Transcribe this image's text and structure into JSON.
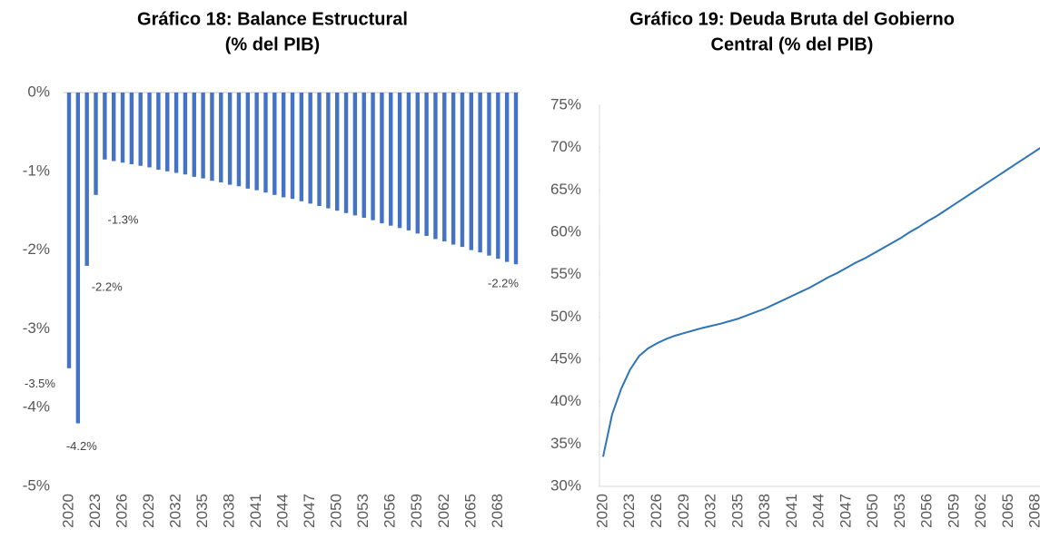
{
  "chart_data": [
    {
      "type": "bar",
      "title": [
        "Gráfico 18: Balance Estructural",
        "(% del PIB)"
      ],
      "categories": [
        "2020",
        null,
        null,
        "2023",
        null,
        null,
        "2026",
        null,
        null,
        "2029",
        null,
        null,
        "2032",
        null,
        null,
        "2035",
        null,
        null,
        "2038",
        null,
        null,
        "2041",
        null,
        null,
        "2044",
        null,
        null,
        "2047",
        null,
        null,
        "2050",
        null,
        null,
        "2053",
        null,
        null,
        "2056",
        null,
        null,
        "2059",
        null,
        null,
        "2062",
        null,
        null,
        "2065",
        null,
        null,
        "2068",
        null,
        null
      ],
      "values": [
        -3.5,
        -4.2,
        -2.2,
        -1.3,
        -0.85,
        -0.87,
        -0.89,
        -0.91,
        -0.93,
        -0.95,
        -0.98,
        -1.0,
        -1.02,
        -1.04,
        -1.07,
        -1.09,
        -1.12,
        -1.14,
        -1.17,
        -1.19,
        -1.22,
        -1.24,
        -1.27,
        -1.3,
        -1.33,
        -1.35,
        -1.38,
        -1.41,
        -1.44,
        -1.47,
        -1.5,
        -1.53,
        -1.56,
        -1.59,
        -1.62,
        -1.66,
        -1.69,
        -1.72,
        -1.75,
        -1.79,
        -1.82,
        -1.86,
        -1.89,
        -1.93,
        -1.96,
        -2.0,
        -2.03,
        -2.07,
        -2.11,
        -2.15,
        -2.18
      ],
      "value_labels": [
        "-3.5%",
        "-4.2%",
        "-2.2%",
        "-1.3%",
        null,
        null,
        null,
        null,
        null,
        null,
        null,
        null,
        null,
        null,
        null,
        null,
        null,
        null,
        null,
        null,
        null,
        null,
        null,
        null,
        null,
        null,
        null,
        null,
        null,
        null,
        null,
        null,
        null,
        null,
        null,
        null,
        null,
        null,
        null,
        null,
        null,
        null,
        null,
        null,
        null,
        null,
        null,
        null,
        null,
        null,
        "-2.2%"
      ],
      "color": "#4472c4",
      "ylim": [
        -5,
        0
      ],
      "yticks": [
        {
          "value": -5,
          "label": "-5%"
        },
        {
          "value": -4,
          "label": "-4%"
        },
        {
          "value": -3,
          "label": "-3%"
        },
        {
          "value": -2,
          "label": "-2%"
        },
        {
          "value": -1,
          "label": "-1%"
        },
        {
          "value": 0,
          "label": "0%"
        }
      ]
    },
    {
      "type": "line",
      "title": [
        "Gráfico 19: Deuda Bruta del Gobierno",
        "Central (% del PIB)"
      ],
      "categories": [
        "2020",
        null,
        null,
        "2023",
        null,
        null,
        "2026",
        null,
        null,
        "2029",
        null,
        null,
        "2032",
        null,
        null,
        "2035",
        null,
        null,
        "2038",
        null,
        null,
        "2041",
        null,
        null,
        "2044",
        null,
        null,
        "2047",
        null,
        null,
        "2050",
        null,
        null,
        "2053",
        null,
        null,
        "2056",
        null,
        null,
        "2059",
        null,
        null,
        "2062",
        null,
        null,
        "2065",
        null,
        null,
        "2068",
        null,
        null
      ],
      "values": [
        33.5,
        38.5,
        41.5,
        43.8,
        45.4,
        46.3,
        46.9,
        47.4,
        47.8,
        48.1,
        48.4,
        48.7,
        48.95,
        49.2,
        49.5,
        49.8,
        50.2,
        50.6,
        51.0,
        51.5,
        52.0,
        52.5,
        53.0,
        53.5,
        54.1,
        54.7,
        55.2,
        55.8,
        56.4,
        56.9,
        57.5,
        58.1,
        58.7,
        59.3,
        60.0,
        60.6,
        61.3,
        61.9,
        62.6,
        63.3,
        64.0,
        64.7,
        65.4,
        66.1,
        66.8,
        67.5,
        68.2,
        68.9,
        69.6,
        70.3,
        71.0
      ],
      "color": "#2e75b6",
      "ylim": [
        30,
        75
      ],
      "yticks": [
        {
          "value": 30,
          "label": "30%"
        },
        {
          "value": 35,
          "label": "35%"
        },
        {
          "value": 40,
          "label": "40%"
        },
        {
          "value": 45,
          "label": "45%"
        },
        {
          "value": 50,
          "label": "50%"
        },
        {
          "value": 55,
          "label": "55%"
        },
        {
          "value": 60,
          "label": "60%"
        },
        {
          "value": 65,
          "label": "65%"
        },
        {
          "value": 70,
          "label": "70%"
        },
        {
          "value": 75,
          "label": "75%"
        }
      ]
    }
  ]
}
